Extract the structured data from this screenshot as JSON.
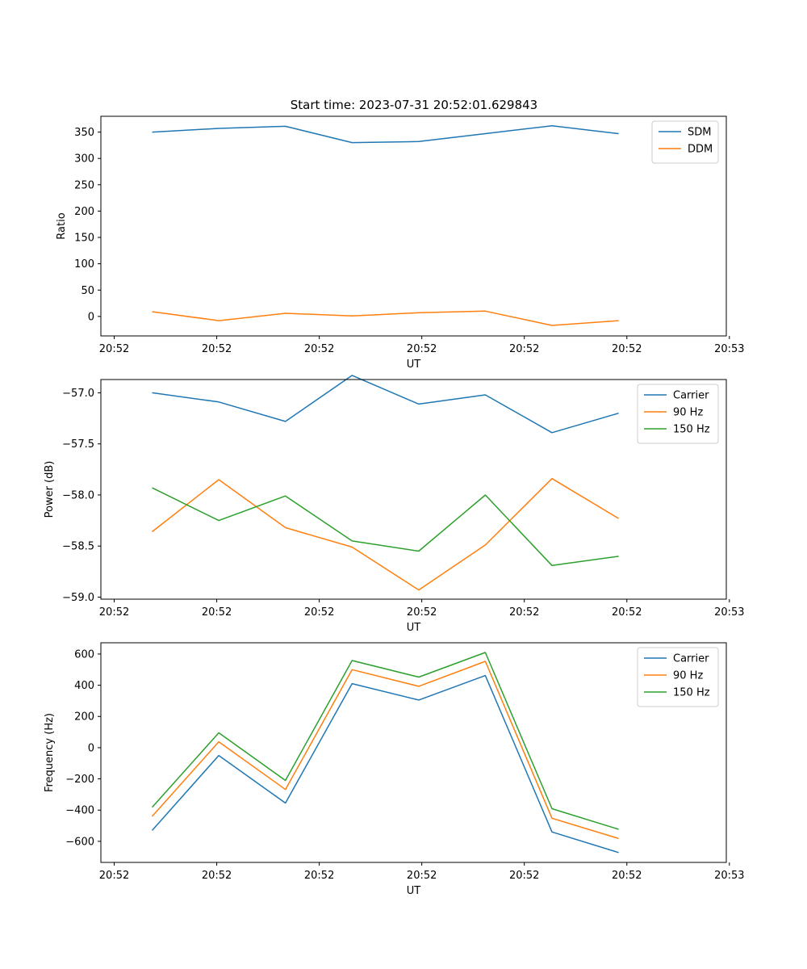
{
  "figure_title": "Start time: 2023-07-31 20:52:01.629843",
  "colors": {
    "blue": "#1f77b4",
    "orange": "#ff7f0e",
    "green": "#2ca02c"
  },
  "chart_data": [
    {
      "type": "line",
      "title": "Start time: 2023-07-31 20:52:01.629843",
      "xlabel": "UT",
      "ylabel": "Ratio",
      "x": [
        0.5,
        1.15,
        1.8,
        2.45,
        3.1,
        3.75,
        4.4,
        5.05
      ],
      "xlim": [
        0,
        6.1
      ],
      "xticks": [
        {
          "value": 0.13,
          "label": "20:52"
        },
        {
          "value": 1.13,
          "label": "20:52"
        },
        {
          "value": 2.13,
          "label": "20:52"
        },
        {
          "value": 3.13,
          "label": "20:52"
        },
        {
          "value": 4.13,
          "label": "20:52"
        },
        {
          "value": 5.13,
          "label": "20:52"
        },
        {
          "value": 6.13,
          "label": "20:53"
        }
      ],
      "ylim": [
        -37,
        380
      ],
      "yticks": [
        0,
        50,
        100,
        150,
        200,
        250,
        300,
        350
      ],
      "ytick_labels": [
        "0",
        "50",
        "100",
        "150",
        "200",
        "250",
        "300",
        "350"
      ],
      "legend": "top-right",
      "series": [
        {
          "name": "SDM",
          "color": "#1f77b4",
          "values": [
            350,
            357,
            361,
            330,
            332,
            347,
            362,
            347
          ]
        },
        {
          "name": "DDM",
          "color": "#ff7f0e",
          "values": [
            9,
            -8,
            6,
            1,
            7,
            10,
            -17,
            -8
          ]
        }
      ]
    },
    {
      "type": "line",
      "title": "",
      "xlabel": "UT",
      "ylabel": "Power (dB)",
      "x": [
        0.5,
        1.15,
        1.8,
        2.45,
        3.1,
        3.75,
        4.4,
        5.05
      ],
      "xlim": [
        0,
        6.1
      ],
      "xticks": [
        {
          "value": 0.13,
          "label": "20:52"
        },
        {
          "value": 1.13,
          "label": "20:52"
        },
        {
          "value": 2.13,
          "label": "20:52"
        },
        {
          "value": 3.13,
          "label": "20:52"
        },
        {
          "value": 4.13,
          "label": "20:52"
        },
        {
          "value": 5.13,
          "label": "20:52"
        },
        {
          "value": 6.13,
          "label": "20:53"
        }
      ],
      "ylim": [
        -59.02,
        -56.87
      ],
      "yticks": [
        -59.0,
        -58.5,
        -58.0,
        -57.5,
        -57.0
      ],
      "ytick_labels": [
        "−59.0",
        "−58.5",
        "−58.0",
        "−57.5",
        "−57.0"
      ],
      "legend": "top-right",
      "series": [
        {
          "name": "Carrier",
          "color": "#1f77b4",
          "values": [
            -57.0,
            -57.09,
            -57.28,
            -56.83,
            -57.11,
            -57.02,
            -57.39,
            -57.2
          ]
        },
        {
          "name": "90 Hz",
          "color": "#ff7f0e",
          "values": [
            -58.36,
            -57.85,
            -58.32,
            -58.51,
            -58.93,
            -58.49,
            -57.84,
            -58.23
          ]
        },
        {
          "name": "150 Hz",
          "color": "#2ca02c",
          "values": [
            -57.93,
            -58.25,
            -58.01,
            -58.45,
            -58.55,
            -58.0,
            -58.69,
            -58.6
          ]
        }
      ]
    },
    {
      "type": "line",
      "title": "",
      "xlabel": "UT",
      "ylabel": "Frequency (Hz)",
      "x": [
        0.5,
        1.15,
        1.8,
        2.45,
        3.1,
        3.75,
        4.4,
        5.05
      ],
      "xlim": [
        0,
        6.1
      ],
      "xticks": [
        {
          "value": 0.13,
          "label": "20:52"
        },
        {
          "value": 1.13,
          "label": "20:52"
        },
        {
          "value": 2.13,
          "label": "20:52"
        },
        {
          "value": 3.13,
          "label": "20:52"
        },
        {
          "value": 4.13,
          "label": "20:52"
        },
        {
          "value": 5.13,
          "label": "20:52"
        },
        {
          "value": 6.13,
          "label": "20:53"
        }
      ],
      "ylim": [
        -735,
        672
      ],
      "yticks": [
        -600,
        -400,
        -200,
        0,
        200,
        400,
        600
      ],
      "ytick_labels": [
        "−600",
        "−400",
        "−200",
        "0",
        "200",
        "400",
        "600"
      ],
      "legend": "top-right",
      "series": [
        {
          "name": "Carrier",
          "color": "#1f77b4",
          "values": [
            -530,
            -50,
            -355,
            410,
            305,
            462,
            -540,
            -672
          ]
        },
        {
          "name": "90 Hz",
          "color": "#ff7f0e",
          "values": [
            -440,
            38,
            -268,
            500,
            393,
            553,
            -452,
            -582
          ]
        },
        {
          "name": "150 Hz",
          "color": "#2ca02c",
          "values": [
            -382,
            95,
            -210,
            558,
            452,
            610,
            -391,
            -523
          ]
        }
      ]
    }
  ]
}
